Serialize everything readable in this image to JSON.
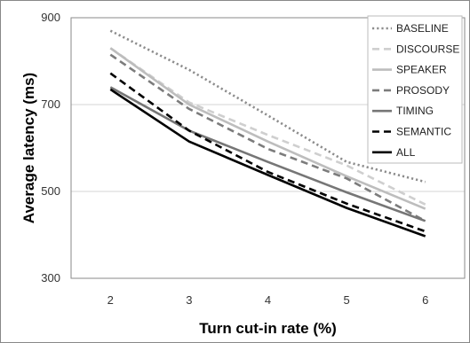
{
  "chart_data": {
    "type": "line",
    "title": "",
    "xlabel": "Turn cut-in rate (%)",
    "ylabel": "Average latency (ms)",
    "x": [
      2,
      3,
      4,
      5,
      6
    ],
    "xlim": [
      1.5,
      6.5
    ],
    "ylim": [
      300,
      900
    ],
    "yticks": [
      300,
      500,
      700,
      900
    ],
    "grid": "horizontal",
    "legend_position": "top-right",
    "series": [
      {
        "name": "BASELINE",
        "values": [
          870,
          780,
          675,
          568,
          522
        ],
        "color": "#8c8c8c",
        "style": "dotted"
      },
      {
        "name": "DISCOURSE",
        "values": [
          830,
          705,
          630,
          560,
          470
        ],
        "color": "#cfcfcf",
        "style": "dashed"
      },
      {
        "name": "SPEAKER",
        "values": [
          830,
          700,
          615,
          535,
          460
        ],
        "color": "#bdbdbd",
        "style": "solid"
      },
      {
        "name": "PROSODY",
        "values": [
          815,
          690,
          598,
          530,
          432
        ],
        "color": "#7c7c7c",
        "style": "dashed"
      },
      {
        "name": "TIMING",
        "values": [
          740,
          640,
          568,
          498,
          432
        ],
        "color": "#767676",
        "style": "solid"
      },
      {
        "name": "SEMANTIC",
        "values": [
          772,
          640,
          545,
          472,
          408
        ],
        "color": "#000000",
        "style": "dashed"
      },
      {
        "name": "ALL",
        "values": [
          735,
          615,
          538,
          462,
          397
        ],
        "color": "#000000",
        "style": "solid"
      }
    ]
  }
}
